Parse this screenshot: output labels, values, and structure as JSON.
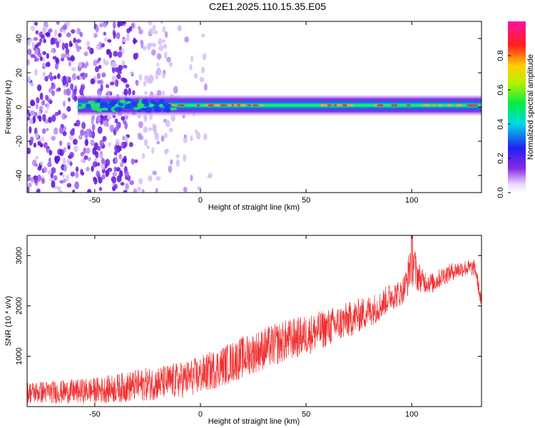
{
  "title": "C2E1.2025.110.15.35.E05",
  "colors": {
    "snr_line": "#f03030",
    "spectrogram_band_core": "#e23a3a",
    "spectrogram_noise": "#6a1fe0",
    "axis": "#000000"
  },
  "chart_data": [
    {
      "type": "heatmap",
      "xlabel": "Height of straight line (km)",
      "ylabel": "Frequency (Hz)",
      "xlim": [
        -82,
        133
      ],
      "ylim": [
        -50,
        50
      ],
      "x_ticks": [
        -50,
        0,
        50,
        100
      ],
      "y_ticks": [
        -40,
        -20,
        0,
        20,
        40
      ],
      "grid": false,
      "colorbar": {
        "label": "Normalized spectral amplitude",
        "range": [
          0.0,
          1.0
        ],
        "ticks": [
          0.0,
          0.2,
          0.4,
          0.6,
          0.8
        ],
        "tick_labels": [
          "0.0",
          "0.2",
          "0.4",
          "0.6",
          "0.8"
        ],
        "colormap": "rainbow (white-violet-blue-cyan-green-yellow-red-magenta)"
      },
      "features": {
        "noise_region_x": [
          -82,
          -15
        ],
        "signal_band_frequency_hz": 1,
        "signal_band_x": [
          -58,
          133
        ],
        "high_amplitude_segments_x": [
          [
            -13,
            30
          ],
          [
            55,
            133
          ]
        ]
      }
    },
    {
      "type": "line",
      "xlabel": "Height of straight line (km)",
      "ylabel": "SNR (10 * v/v)",
      "xlim": [
        -82,
        133
      ],
      "ylim": [
        0,
        3400
      ],
      "x_ticks": [
        -50,
        0,
        50,
        100
      ],
      "y_ticks": [
        1000,
        2000,
        3000
      ],
      "grid": false,
      "series": [
        {
          "x": [
            -82,
            -70,
            -60,
            -50,
            -40,
            -30,
            -20,
            -10,
            0,
            10,
            20,
            30,
            40,
            50,
            60,
            70,
            80,
            85,
            90,
            95,
            98,
            100,
            102,
            105,
            110,
            115,
            120,
            125,
            130,
            133
          ],
          "y": [
            280,
            290,
            300,
            320,
            360,
            420,
            470,
            520,
            620,
            800,
            980,
            1150,
            1300,
            1420,
            1560,
            1720,
            1900,
            2000,
            2200,
            2250,
            2500,
            3100,
            2650,
            2500,
            2450,
            2600,
            2700,
            2750,
            2750,
            2050
          ],
          "spread": [
            220,
            230,
            240,
            260,
            290,
            320,
            340,
            360,
            380,
            400,
            420,
            420,
            420,
            400,
            380,
            360,
            320,
            300,
            280,
            260,
            320,
            700,
            360,
            240,
            200,
            190,
            180,
            170,
            160,
            150
          ]
        }
      ]
    }
  ]
}
